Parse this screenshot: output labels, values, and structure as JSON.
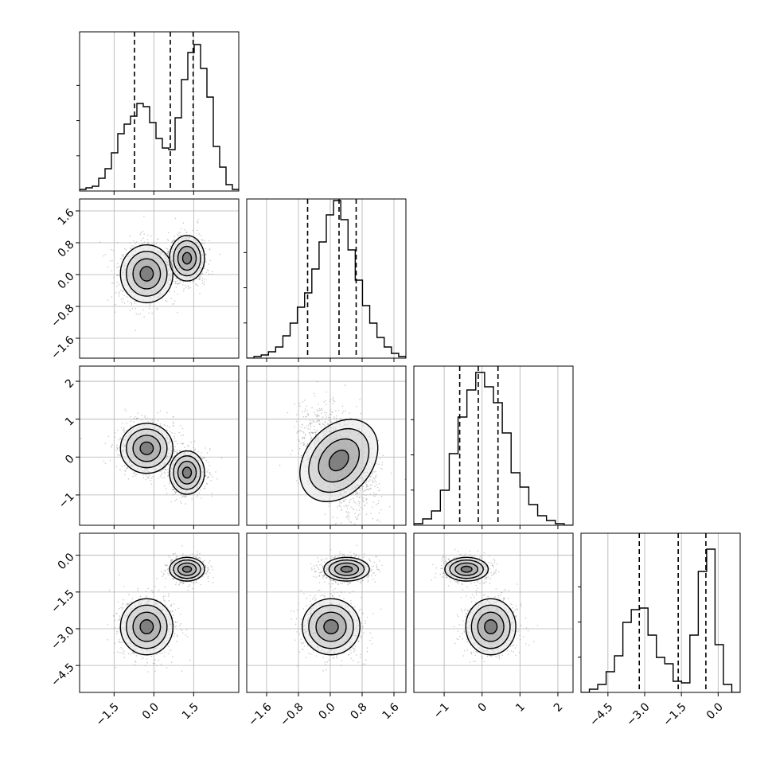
{
  "chart_data": {
    "type": "corner",
    "parameters": 4,
    "grid": true,
    "contour_levels": 4,
    "quantile_lines": "dashed",
    "axes": [
      {
        "range": [
          -2.8,
          3.2
        ],
        "ticks": [
          -1.5,
          0.0,
          1.5
        ],
        "tick_labels": [
          "−1.5",
          "0.0",
          "1.5"
        ]
      },
      {
        "range": [
          -2.1,
          1.9
        ],
        "ticks": [
          -1.6,
          -0.8,
          0.0,
          0.8,
          1.6
        ],
        "tick_labels": [
          "−1.6",
          "−0.8",
          "0.0",
          "0.8",
          "1.6"
        ]
      },
      {
        "range": [
          -1.8,
          2.4
        ],
        "ticks": [
          -1,
          0,
          1,
          2
        ],
        "tick_labels": [
          "−1",
          "0",
          "1",
          "2"
        ]
      },
      {
        "range": [
          -5.6,
          0.9
        ],
        "ticks": [
          -4.5,
          -3.0,
          -1.5,
          0.0
        ],
        "tick_labels": [
          "−4.5",
          "−3.0",
          "−1.5",
          "0.0"
        ]
      }
    ],
    "quantiles": [
      [
        -0.73,
        0.62,
        1.48
      ],
      [
        -0.57,
        0.22,
        0.65
      ],
      [
        -0.59,
        -0.1,
        0.42
      ],
      [
        -3.22,
        -1.63,
        -0.5
      ]
    ],
    "histograms": [
      [
        0.01,
        0.02,
        0.03,
        0.08,
        0.14,
        0.24,
        0.36,
        0.42,
        0.47,
        0.55,
        0.53,
        0.43,
        0.33,
        0.27,
        0.26,
        0.46,
        0.7,
        0.87,
        0.92,
        0.77,
        0.59,
        0.28,
        0.15,
        0.04,
        0.01
      ],
      [
        0.0,
        0.01,
        0.02,
        0.04,
        0.07,
        0.14,
        0.22,
        0.32,
        0.41,
        0.56,
        0.73,
        0.9,
        0.99,
        0.87,
        0.68,
        0.49,
        0.33,
        0.22,
        0.13,
        0.07,
        0.03,
        0.01
      ],
      [
        0.01,
        0.04,
        0.09,
        0.22,
        0.45,
        0.68,
        0.85,
        0.96,
        0.87,
        0.77,
        0.58,
        0.33,
        0.24,
        0.13,
        0.06,
        0.03,
        0.01,
        0.0
      ],
      [
        0.0,
        0.02,
        0.05,
        0.13,
        0.23,
        0.44,
        0.52,
        0.53,
        0.36,
        0.22,
        0.18,
        0.07,
        0.06,
        0.36,
        0.76,
        0.9,
        0.3,
        0.05,
        0.0
      ]
    ],
    "modes": {
      "A": [
        -0.27,
        0.02,
        0.23,
        -2.92
      ],
      "B": [
        1.25,
        0.41,
        -0.41,
        -0.57
      ]
    },
    "mode_spreads": {
      "A": [
        0.45,
        0.33,
        0.3,
        0.52
      ],
      "B": [
        0.3,
        0.26,
        0.26,
        0.22
      ]
    },
    "pair_correlations": [
      [
        0.0,
        0.0,
        0.0,
        0.0
      ],
      [
        0.0,
        0.0,
        0.0,
        0.0
      ],
      [
        0.0,
        -0.4,
        0.0,
        0.0
      ],
      [
        0.0,
        0.0,
        0.0,
        0.0
      ]
    ]
  }
}
